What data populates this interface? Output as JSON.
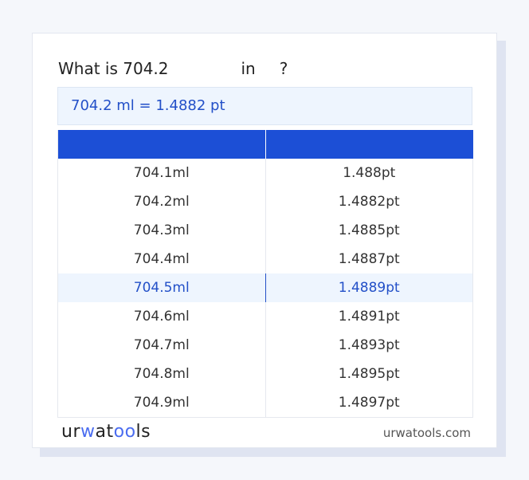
{
  "question": {
    "prefix": "What is 704.2",
    "mid": "in",
    "suffix": "?"
  },
  "result": "704.2 ml = 1.4882 pt",
  "table": {
    "headers": [
      "",
      ""
    ],
    "rows": [
      [
        "704.1ml",
        "1.488pt"
      ],
      [
        "704.2ml",
        "1.4882pt"
      ],
      [
        "704.3ml",
        "1.4885pt"
      ],
      [
        "704.4ml",
        "1.4887pt"
      ],
      [
        "704.5ml",
        "1.4889pt"
      ],
      [
        "704.6ml",
        "1.4891pt"
      ],
      [
        "704.7ml",
        "1.4893pt"
      ],
      [
        "704.8ml",
        "1.4895pt"
      ],
      [
        "704.9ml",
        "1.4897pt"
      ]
    ],
    "highlighted_index": 4
  },
  "footer": {
    "logo_parts": [
      "ur",
      "w",
      "at",
      "oo",
      "ls"
    ],
    "site": "urwatools.com"
  },
  "colors": {
    "accent": "#1c4fd6",
    "highlight_bg": "#eef5fe",
    "link_text": "#2350c8"
  }
}
